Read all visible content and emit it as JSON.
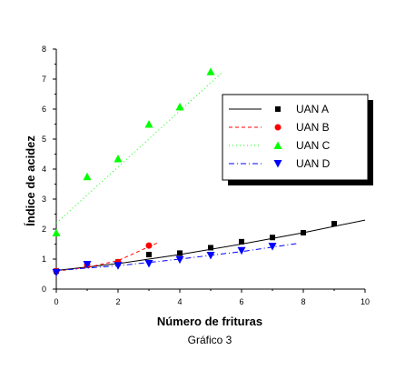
{
  "chart_data": {
    "type": "scatter",
    "xlabel": "Número de frituras",
    "ylabel": "Índice de acidez",
    "caption": "Gráfico 3",
    "xlim": [
      0,
      10
    ],
    "ylim": [
      0,
      8
    ],
    "xticks": [
      0,
      2,
      4,
      6,
      8,
      10
    ],
    "yticks": [
      0,
      1,
      2,
      3,
      4,
      5,
      6,
      7,
      8
    ],
    "grid": false,
    "legend_position": "top-right",
    "series": [
      {
        "name": "UAN A",
        "marker": "square",
        "color": "#000000",
        "line_style": "solid",
        "points": [
          [
            0,
            0.6
          ],
          [
            1,
            0.8
          ],
          [
            2,
            0.9
          ],
          [
            3,
            1.15
          ],
          [
            4,
            1.2
          ],
          [
            5,
            1.38
          ],
          [
            6,
            1.58
          ],
          [
            7,
            1.72
          ],
          [
            8,
            1.88
          ],
          [
            9,
            2.18
          ]
        ],
        "fit": [
          [
            0,
            0.62
          ],
          [
            2,
            0.85
          ],
          [
            4,
            1.15
          ],
          [
            6,
            1.5
          ],
          [
            8,
            1.88
          ],
          [
            10,
            2.3
          ]
        ]
      },
      {
        "name": "UAN B",
        "marker": "circle",
        "color": "#ff0000",
        "line_style": "dashed",
        "points": [
          [
            0,
            0.6
          ],
          [
            1,
            0.82
          ],
          [
            2,
            0.9
          ],
          [
            3,
            1.45
          ]
        ],
        "fit": [
          [
            0,
            0.6
          ],
          [
            1,
            0.72
          ],
          [
            2,
            0.95
          ],
          [
            3.3,
            1.55
          ]
        ]
      },
      {
        "name": "UAN C",
        "marker": "triangle-up",
        "color": "#00ff00",
        "line_style": "dotted",
        "points": [
          [
            0,
            1.88
          ],
          [
            1,
            3.75
          ],
          [
            2,
            4.35
          ],
          [
            3,
            5.5
          ],
          [
            4,
            6.08
          ],
          [
            5,
            7.25
          ]
        ],
        "fit": [
          [
            0,
            2.2
          ],
          [
            5.4,
            7.25
          ]
        ]
      },
      {
        "name": "UAN D",
        "marker": "triangle-down",
        "color": "#0000ff",
        "line_style": "dashdot",
        "points": [
          [
            0,
            0.55
          ],
          [
            1,
            0.82
          ],
          [
            2,
            0.78
          ],
          [
            3,
            0.85
          ],
          [
            4,
            0.98
          ],
          [
            5,
            1.12
          ],
          [
            6,
            1.28
          ],
          [
            7,
            1.42
          ]
        ],
        "fit": [
          [
            0,
            0.62
          ],
          [
            2,
            0.78
          ],
          [
            4,
            1.0
          ],
          [
            6,
            1.25
          ],
          [
            7.8,
            1.52
          ]
        ]
      }
    ]
  }
}
